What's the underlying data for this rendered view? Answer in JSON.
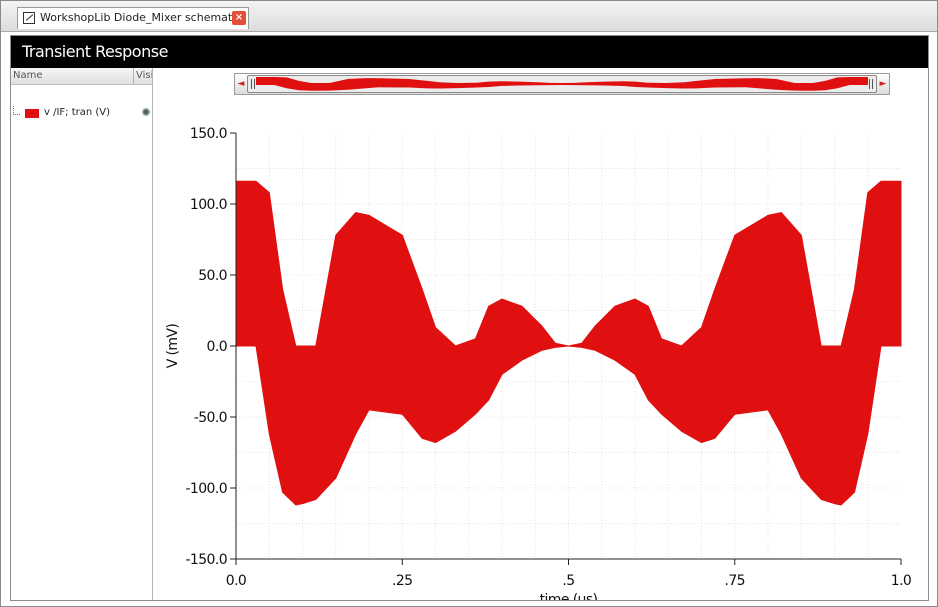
{
  "window": {
    "tab_title": "WorkshopLib Diode_Mixer schematic",
    "close_glyph": "×"
  },
  "panel": {
    "title": "Transient Response"
  },
  "legend": {
    "col_name": "Name",
    "col_visible": "Visible",
    "items": [
      {
        "label": "v /IF; tran (V)",
        "color": "#e01010"
      }
    ]
  },
  "icons": {
    "tab": "schematic-icon",
    "close": "close-icon",
    "visibility": "eye-icon",
    "scroll_left": "arrow-left-icon",
    "scroll_right": "arrow-right-icon"
  },
  "scrollbar": {
    "left_arrow": "◄",
    "right_arrow": "►"
  },
  "chart_data": {
    "type": "area",
    "title": "",
    "xlabel": "time (us)",
    "ylabel": "V (mV)",
    "xlim": [
      0,
      1.0
    ],
    "ylim": [
      -150,
      150
    ],
    "grid": true,
    "xticks": [
      0,
      0.25,
      0.5,
      0.75,
      1.0
    ],
    "xtick_labels": [
      "0.0",
      ".25",
      ".5",
      ".75",
      "1.0"
    ],
    "yticks": [
      150,
      100,
      50,
      0,
      -50,
      -100,
      -150
    ],
    "ytick_labels": [
      "150.0",
      "100.0",
      "50.0",
      "0.0",
      "-50.0",
      "-100.0",
      "-150.0"
    ],
    "series": [
      {
        "name": "v /IF; tran (V)",
        "color": "#e01010",
        "style": "filled envelope",
        "x": [
          0.0,
          0.03,
          0.05,
          0.07,
          0.09,
          0.1,
          0.12,
          0.15,
          0.18,
          0.2,
          0.25,
          0.28,
          0.3,
          0.33,
          0.36,
          0.38,
          0.4,
          0.43,
          0.46,
          0.48,
          0.5,
          0.52,
          0.54,
          0.57,
          0.6,
          0.62,
          0.64,
          0.67,
          0.7,
          0.72,
          0.75,
          0.8,
          0.82,
          0.85,
          0.88,
          0.9,
          0.91,
          0.93,
          0.95,
          0.97,
          1.0
        ],
        "upper": [
          116,
          116,
          108,
          40,
          0,
          0,
          0,
          78,
          94,
          92,
          78,
          40,
          13,
          0,
          5,
          28,
          33,
          28,
          14,
          2,
          0,
          2,
          14,
          28,
          33,
          28,
          5,
          0,
          13,
          40,
          78,
          92,
          94,
          78,
          0,
          0,
          0,
          40,
          108,
          116,
          116
        ],
        "lower": [
          0,
          0,
          -62,
          -103,
          -112,
          -111,
          -108,
          -93,
          -62,
          -45,
          -48,
          -65,
          -68,
          -60,
          -48,
          -38,
          -20,
          -10,
          -3,
          -1,
          0,
          -1,
          -3,
          -10,
          -20,
          -38,
          -48,
          -60,
          -68,
          -65,
          -48,
          -45,
          -62,
          -93,
          -108,
          -111,
          -112,
          -103,
          -62,
          0,
          0
        ]
      }
    ]
  }
}
